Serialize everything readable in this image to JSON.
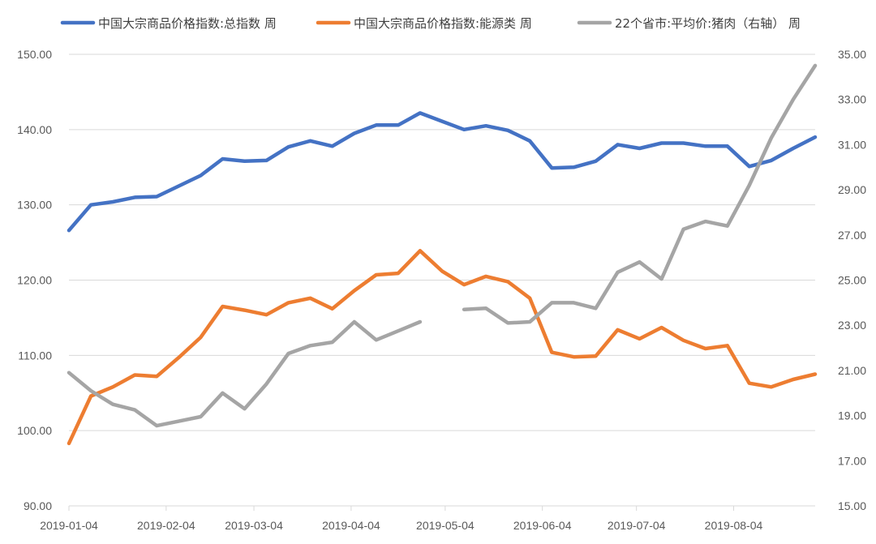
{
  "chart_data": {
    "type": "line",
    "legend": {
      "position": "top",
      "entries": [
        {
          "label": "中国大宗商品价格指数:总指数 周",
          "color": "#4472C4"
        },
        {
          "label": "中国大宗商品价格指数:能源类 周",
          "color": "#ED7D31"
        },
        {
          "label": "22个省市:平均价:猪肉（右轴） 周",
          "color": "#A5A5A5"
        }
      ]
    },
    "x_tick_labels": [
      "2019-01-04",
      "2019-02-04",
      "2019-03-04",
      "2019-04-04",
      "2019-05-04",
      "2019-06-04",
      "2019-07-04",
      "2019-08-04"
    ],
    "x_tick_dates": [
      "2019-01-04",
      "2019-02-04",
      "2019-03-04",
      "2019-04-04",
      "2019-05-04",
      "2019-06-04",
      "2019-07-04",
      "2019-08-04"
    ],
    "xlim": [
      "2019-01-04",
      "2019-08-30"
    ],
    "y_left": {
      "min": 90,
      "max": 150,
      "step": 10,
      "tick_labels": [
        "90.00",
        "100.00",
        "110.00",
        "120.00",
        "130.00",
        "140.00",
        "150.00"
      ]
    },
    "y_right": {
      "min": 15,
      "max": 35,
      "step": 2,
      "tick_labels": [
        "15.00",
        "17.00",
        "19.00",
        "21.00",
        "23.00",
        "25.00",
        "27.00",
        "29.00",
        "31.00",
        "33.00",
        "35.00"
      ]
    },
    "grid": "horizontal",
    "x": [
      "2019-01-04",
      "2019-01-11",
      "2019-01-18",
      "2019-01-25",
      "2019-02-01",
      "2019-02-08",
      "2019-02-15",
      "2019-02-22",
      "2019-03-01",
      "2019-03-08",
      "2019-03-15",
      "2019-03-22",
      "2019-03-29",
      "2019-04-05",
      "2019-04-12",
      "2019-04-19",
      "2019-04-26",
      "2019-05-03",
      "2019-05-10",
      "2019-05-17",
      "2019-05-24",
      "2019-05-31",
      "2019-06-07",
      "2019-06-14",
      "2019-06-21",
      "2019-06-28",
      "2019-07-05",
      "2019-07-12",
      "2019-07-19",
      "2019-07-26",
      "2019-08-02",
      "2019-08-09",
      "2019-08-16",
      "2019-08-23",
      "2019-08-30"
    ],
    "series": [
      {
        "name": "中国大宗商品价格指数:总指数 周",
        "axis": "left",
        "color": "#4472C4",
        "values": [
          126.6,
          130.0,
          130.4,
          131.0,
          131.1,
          132.5,
          133.9,
          136.1,
          135.8,
          135.9,
          137.7,
          138.5,
          137.8,
          139.5,
          140.6,
          140.6,
          142.2,
          141.1,
          140.0,
          140.5,
          139.9,
          138.5,
          134.9,
          135.0,
          135.8,
          138.0,
          137.5,
          138.2,
          138.2,
          137.8,
          137.8,
          135.1,
          135.9,
          137.5,
          139.0
        ]
      },
      {
        "name": "中国大宗商品价格指数:能源类 周",
        "axis": "left",
        "color": "#ED7D31",
        "values": [
          98.3,
          104.6,
          105.8,
          107.4,
          107.2,
          109.7,
          112.4,
          116.5,
          116.0,
          115.4,
          117.0,
          117.6,
          116.2,
          118.6,
          120.7,
          120.9,
          123.9,
          121.2,
          119.4,
          120.5,
          119.8,
          117.6,
          110.4,
          109.8,
          109.9,
          113.4,
          112.2,
          113.7,
          112.0,
          110.9,
          111.3,
          106.3,
          105.8,
          106.8,
          107.5
        ]
      },
      {
        "name": "22个省市:平均价:猪肉（右轴） 周",
        "axis": "right",
        "color": "#A5A5A5",
        "values": [
          20.9,
          20.1,
          19.5,
          19.25,
          18.55,
          18.75,
          18.95,
          20.0,
          19.3,
          20.4,
          21.75,
          22.1,
          22.25,
          23.15,
          22.35,
          22.75,
          23.15,
          null,
          23.7,
          23.75,
          23.1,
          23.15,
          24.0,
          24.0,
          23.75,
          25.35,
          25.8,
          25.05,
          27.25,
          27.6,
          27.4,
          29.2,
          31.3,
          33.0,
          34.5
        ]
      }
    ]
  }
}
